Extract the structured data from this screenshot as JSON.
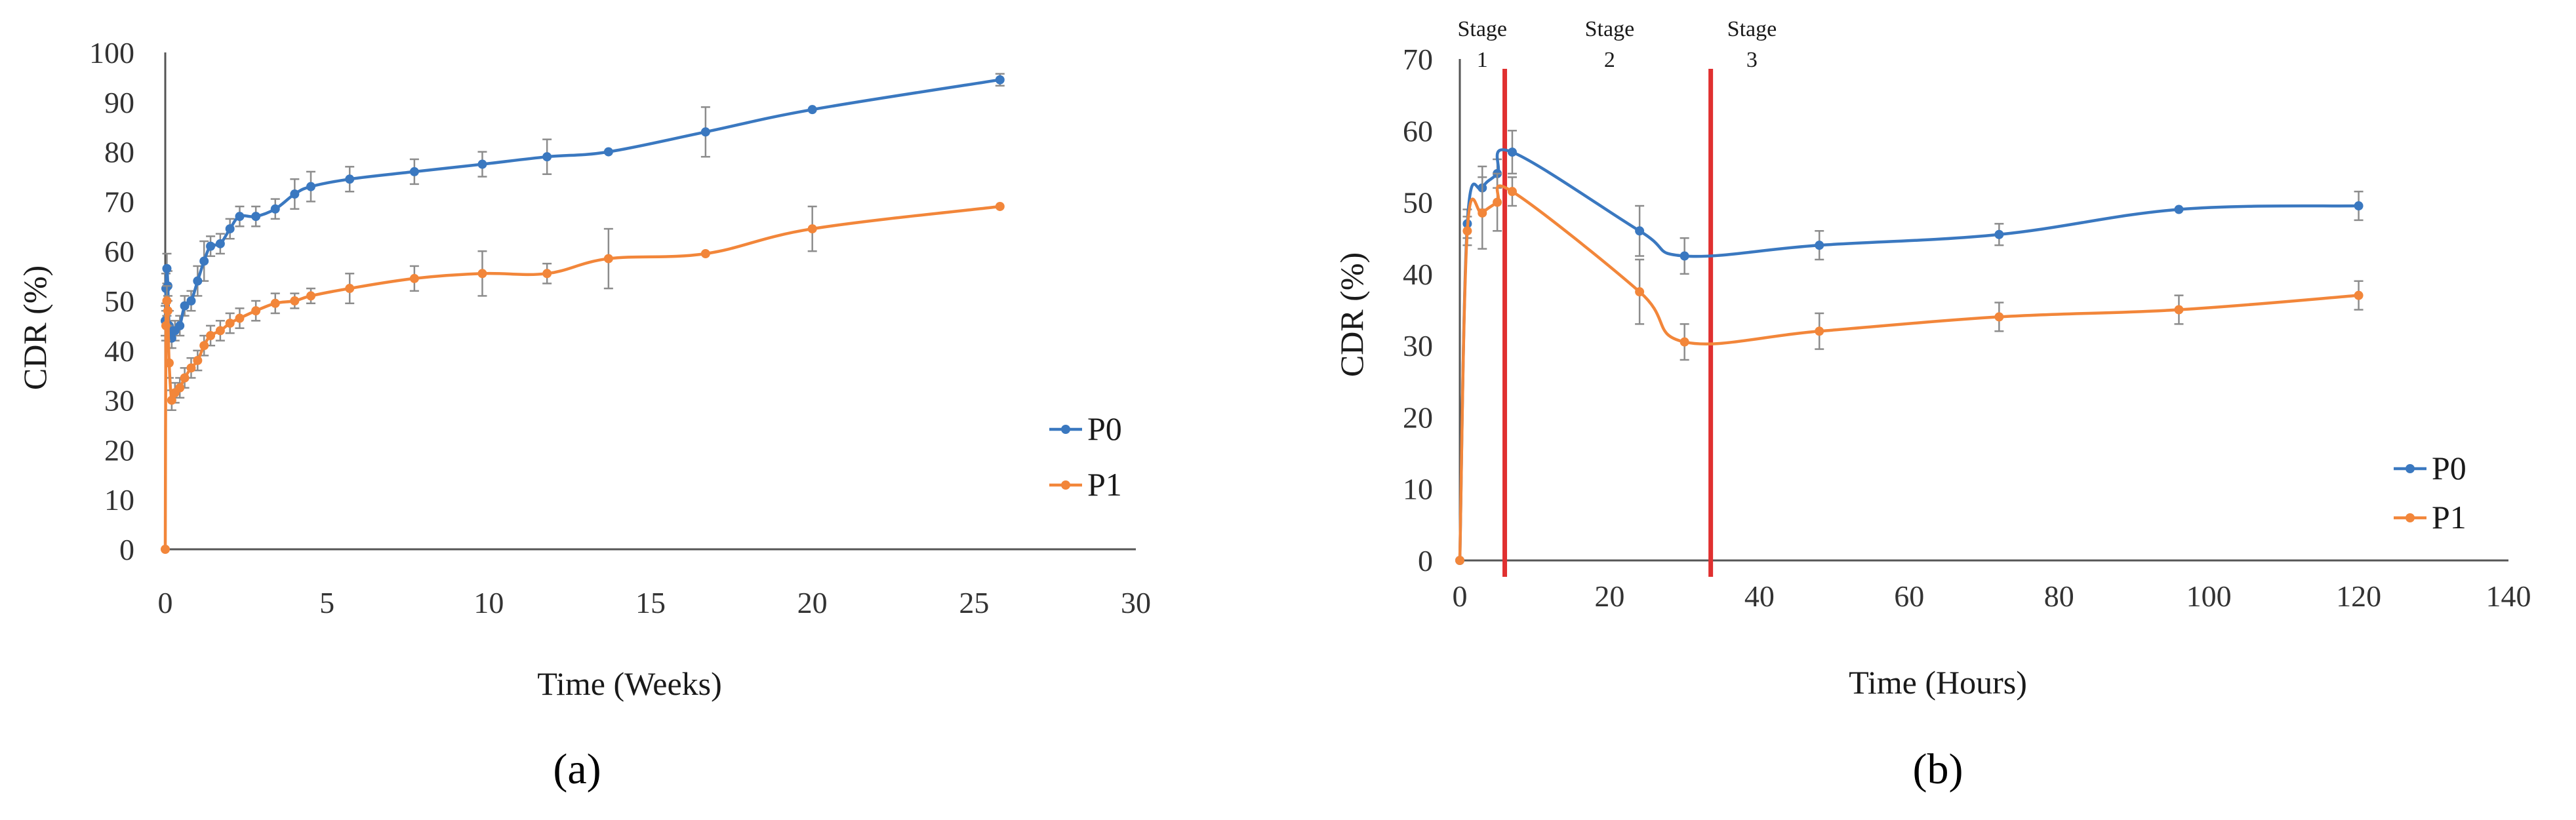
{
  "chart_data": [
    {
      "type": "line",
      "panel_label": "(a)",
      "xlabel": "Time (Weeks)",
      "ylabel": "CDR (%)",
      "xlim": [
        0,
        30
      ],
      "ylim": [
        0,
        100
      ],
      "xticks": [
        0,
        5,
        10,
        15,
        20,
        25,
        30
      ],
      "yticks": [
        0,
        10,
        20,
        30,
        40,
        50,
        60,
        70,
        80,
        90,
        100
      ],
      "grid": false,
      "legend_position": "right",
      "series": [
        {
          "name": "P0",
          "color": "#3a78c0",
          "x": [
            0,
            0.02,
            0.05,
            0.08,
            0.12,
            0.2,
            0.3,
            0.45,
            0.6,
            0.8,
            1.0,
            1.2,
            1.4,
            1.7,
            2.0,
            2.3,
            2.8,
            3.4,
            4.0,
            4.5,
            5.7,
            7.7,
            9.8,
            11.8,
            13.7,
            16.7,
            20.0,
            25.8
          ],
          "y": [
            46.0,
            52.5,
            56.5,
            53.0,
            45.0,
            42.5,
            44.0,
            45.0,
            49.0,
            50.0,
            54.0,
            58.0,
            61.0,
            61.5,
            64.5,
            67.0,
            67.0,
            68.5,
            71.5,
            73.0,
            74.5,
            76.0,
            77.5,
            79.0,
            80.0,
            84.0,
            88.5,
            94.5
          ],
          "err": [
            3,
            3,
            3,
            3,
            3,
            2,
            2,
            2,
            2,
            2,
            3,
            4,
            2,
            2,
            2,
            2,
            2,
            2,
            3,
            3,
            2.5,
            2.5,
            2.5,
            3.5,
            0,
            5,
            0,
            1.2
          ]
        },
        {
          "name": "P1",
          "color": "#f2863a",
          "x": [
            0,
            0.02,
            0.05,
            0.08,
            0.12,
            0.2,
            0.3,
            0.45,
            0.6,
            0.8,
            1.0,
            1.2,
            1.4,
            1.7,
            2.0,
            2.3,
            2.8,
            3.4,
            4.0,
            4.5,
            5.7,
            7.7,
            9.8,
            11.8,
            13.7,
            16.7,
            20.0,
            25.8
          ],
          "y": [
            0,
            45.0,
            50.0,
            48.0,
            37.5,
            30.0,
            31.5,
            32.5,
            34.5,
            36.5,
            38.0,
            41.0,
            43.0,
            44.0,
            45.5,
            46.5,
            48.0,
            49.5,
            50.0,
            51.0,
            52.5,
            54.5,
            55.5,
            55.5,
            58.5,
            59.5,
            64.5,
            69.0
          ],
          "err": [
            0,
            3,
            3,
            3,
            3,
            2,
            2,
            2,
            2,
            2,
            2,
            2,
            2,
            2,
            2,
            2,
            2,
            2,
            1.5,
            1.5,
            3,
            2.5,
            4.5,
            2,
            6,
            0,
            4.5,
            0
          ]
        }
      ]
    },
    {
      "type": "line",
      "panel_label": "(b)",
      "xlabel": "Time (Hours)",
      "ylabel": "CDR (%)",
      "xlim": [
        0,
        140
      ],
      "ylim": [
        0,
        70
      ],
      "xticks": [
        0,
        20,
        40,
        60,
        80,
        100,
        120,
        140
      ],
      "yticks": [
        0,
        10,
        20,
        30,
        40,
        50,
        60,
        70
      ],
      "grid": false,
      "legend_position": "right",
      "stages": [
        {
          "label_top": "Stage",
          "label_num": "1",
          "x": 3
        },
        {
          "label_top": "Stage",
          "label_num": "2",
          "x": 20
        },
        {
          "label_top": "Stage",
          "label_num": "3",
          "x": 39
        }
      ],
      "vlines": [
        6,
        33.5
      ],
      "vline_color": "#e03030",
      "series": [
        {
          "name": "P0",
          "color": "#3a78c0",
          "x": [
            0,
            1,
            3,
            5,
            7,
            24,
            30,
            48,
            72,
            96,
            120
          ],
          "y": [
            0,
            47,
            52,
            54,
            57,
            46,
            42.5,
            44,
            45.5,
            49,
            49.5
          ],
          "err": [
            0,
            2,
            3,
            2,
            3,
            3.5,
            2.5,
            2,
            1.5,
            0,
            2
          ]
        },
        {
          "name": "P1",
          "color": "#f2863a",
          "x": [
            0,
            1,
            3,
            5,
            7,
            24,
            30,
            48,
            72,
            96,
            120
          ],
          "y": [
            0,
            46,
            48.5,
            50,
            51.5,
            37.5,
            30.5,
            32,
            34,
            35,
            37
          ],
          "err": [
            0,
            2,
            5,
            4,
            2,
            4.5,
            2.5,
            2.5,
            2,
            2,
            2
          ]
        }
      ]
    }
  ]
}
